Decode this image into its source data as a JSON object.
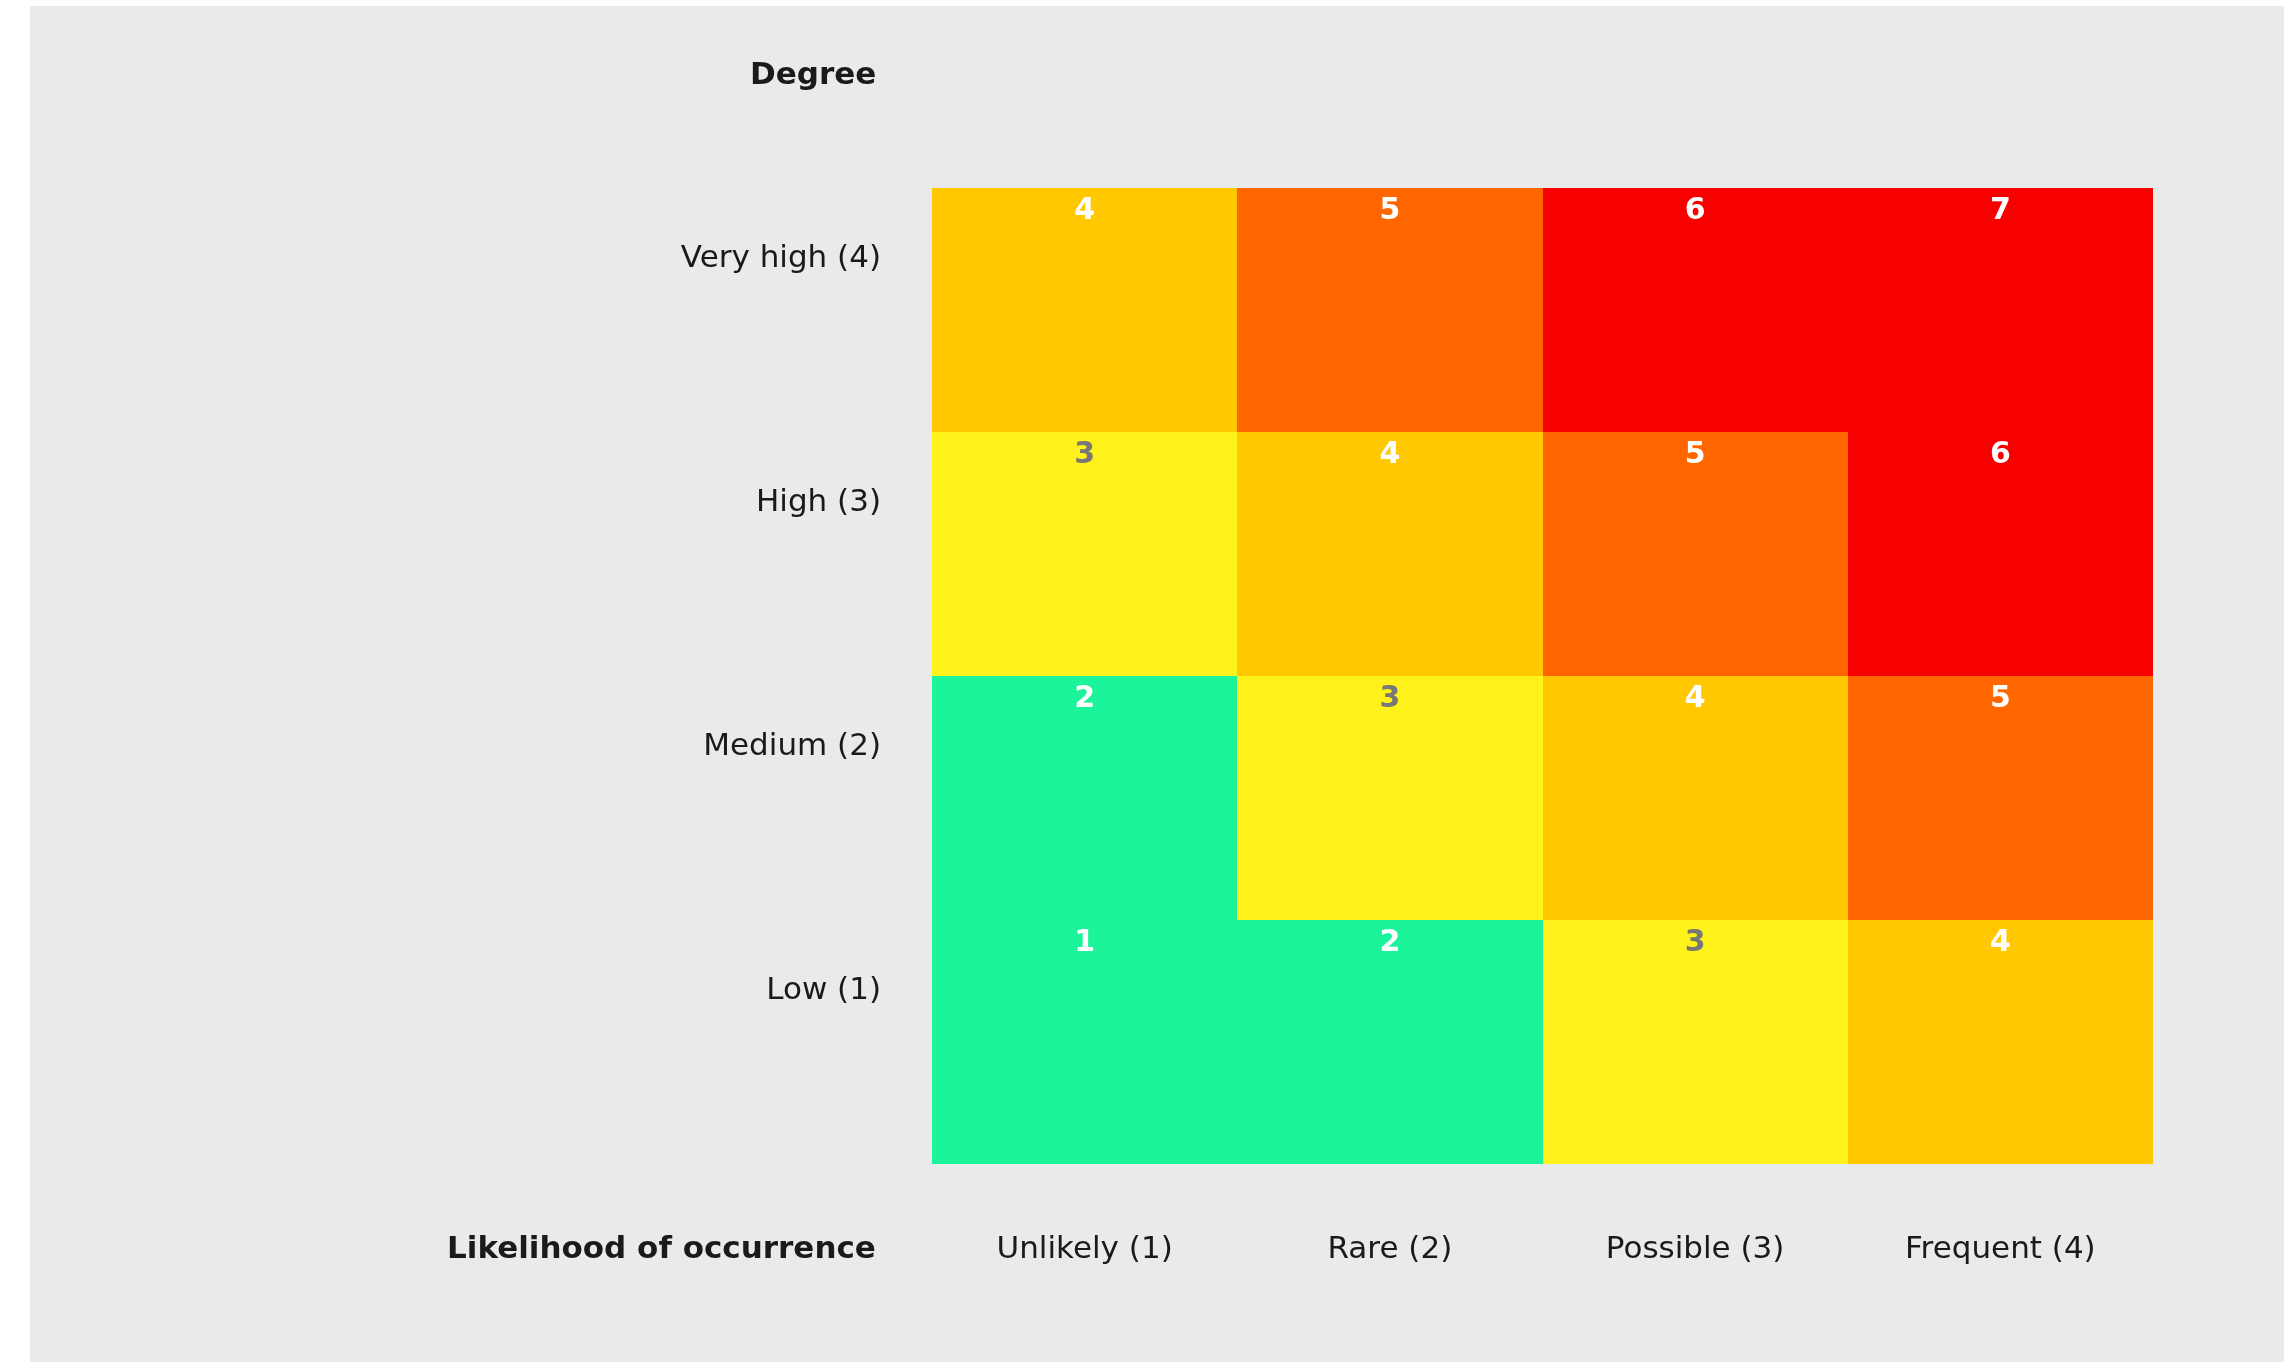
{
  "chart_data": {
    "type": "heatmap",
    "xlabel": "Likelihood of occurrence",
    "ylabel": "Degree",
    "categories": [
      "Unlikely (1)",
      "Rare (2)",
      "Possible (3)",
      "Frequent (4)"
    ],
    "y_categories": [
      "Very high (4)",
      "High (3)",
      "Medium (2)",
      "Low (1)"
    ],
    "data_labels": true,
    "cells": [
      [
        4,
        5,
        6,
        7
      ],
      [
        3,
        4,
        5,
        6
      ],
      [
        2,
        3,
        4,
        5
      ],
      [
        1,
        2,
        3,
        4
      ]
    ]
  }
}
